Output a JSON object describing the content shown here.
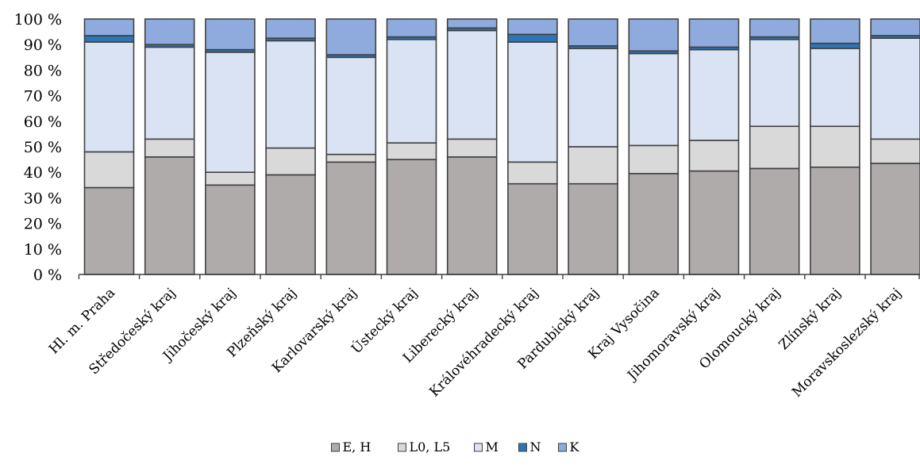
{
  "chart_data": {
    "type": "bar",
    "stacked": true,
    "percent": true,
    "title": "",
    "xlabel": "",
    "ylabel": "",
    "ylim": [
      0,
      100
    ],
    "yticks": [
      0,
      10,
      20,
      30,
      40,
      50,
      60,
      70,
      80,
      90,
      100
    ],
    "ytick_suffix": " %",
    "grid": false,
    "legend_position": "bottom",
    "categories": [
      "Hl. m. Praha",
      "Středočeský kraj",
      "Jihočeský kraj",
      "Plzeňský kraj",
      "Karlovarský kraj",
      "Ústecký kraj",
      "Liberecký kraj",
      "Královéhradecký kraj",
      "Pardubický kraj",
      "Kraj Vysočina",
      "Jihomoravský kraj",
      "Olomoucký kraj",
      "Zlínský kraj",
      "Moravskoslezský kraj"
    ],
    "series": [
      {
        "name": "E, H",
        "color": "#afabab",
        "values": [
          34,
          46,
          35,
          39,
          44,
          45,
          46,
          35.5,
          35.5,
          39.5,
          40.5,
          41.5,
          42,
          43.5
        ]
      },
      {
        "name": "L0, L5",
        "color": "#d9d9d9",
        "values": [
          14,
          7,
          5,
          10.5,
          3,
          6.5,
          7,
          8.5,
          14.5,
          11,
          12,
          16.5,
          16,
          9.5
        ]
      },
      {
        "name": "M",
        "color": "#dae3f3",
        "values": [
          43,
          36,
          47,
          42,
          38,
          40.5,
          42.5,
          47,
          38.5,
          36,
          35.5,
          34,
          30.5,
          39.5
        ]
      },
      {
        "name": "N",
        "color": "#2e75b6",
        "values": [
          2.5,
          1,
          1,
          1,
          1,
          1,
          1,
          3,
          1,
          1,
          1,
          1,
          2,
          1
        ]
      },
      {
        "name": "K",
        "color": "#8faadc",
        "values": [
          6.5,
          10,
          12,
          7.5,
          14,
          7,
          3.5,
          6,
          10.5,
          12.5,
          11,
          7,
          9.5,
          6.5
        ]
      }
    ]
  }
}
